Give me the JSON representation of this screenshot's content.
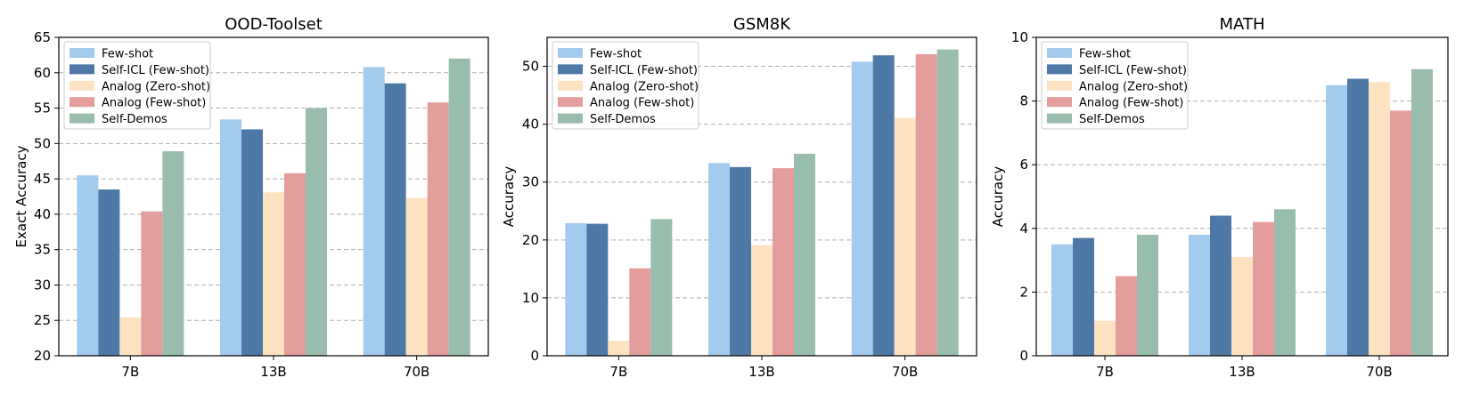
{
  "chart_data": [
    {
      "type": "bar",
      "title": "OOD-Toolset",
      "xlabel": "",
      "ylabel": "Exact Accuracy",
      "categories": [
        "7B",
        "13B",
        "70B"
      ],
      "ylim": [
        20,
        65
      ],
      "yticks": [
        20,
        25,
        30,
        35,
        40,
        45,
        50,
        55,
        60,
        65
      ],
      "grid": "horizontal dashed",
      "legend_position": "top-left",
      "series": [
        {
          "name": "Few-shot",
          "color": "#a3cbee",
          "values": [
            45.5,
            53.4,
            60.8
          ]
        },
        {
          "name": "Self-ICL (Few-shot)",
          "color": "#4e79a7",
          "values": [
            43.5,
            52.0,
            58.5
          ]
        },
        {
          "name": "Analog (Zero-shot)",
          "color": "#fde3c2",
          "values": [
            25.4,
            43.1,
            42.3
          ]
        },
        {
          "name": "Analog (Few-shot)",
          "color": "#e39e9b",
          "values": [
            40.4,
            45.8,
            55.8
          ]
        },
        {
          "name": "Self-Demos",
          "color": "#99bdac",
          "values": [
            48.9,
            55.0,
            62.0
          ]
        }
      ]
    },
    {
      "type": "bar",
      "title": "GSM8K",
      "xlabel": "",
      "ylabel": "Accuracy",
      "categories": [
        "7B",
        "13B",
        "70B"
      ],
      "ylim": [
        0,
        55
      ],
      "yticks": [
        0,
        10,
        20,
        30,
        40,
        50
      ],
      "grid": "horizontal dashed",
      "legend_position": "top-left",
      "series": [
        {
          "name": "Few-shot",
          "color": "#a3cbee",
          "values": [
            22.9,
            33.3,
            50.8
          ]
        },
        {
          "name": "Self-ICL (Few-shot)",
          "color": "#4e79a7",
          "values": [
            22.8,
            32.6,
            51.9
          ]
        },
        {
          "name": "Analog (Zero-shot)",
          "color": "#fde3c2",
          "values": [
            2.6,
            19.1,
            41.1
          ]
        },
        {
          "name": "Analog (Few-shot)",
          "color": "#e39e9b",
          "values": [
            15.1,
            32.4,
            52.1
          ]
        },
        {
          "name": "Self-Demos",
          "color": "#99bdac",
          "values": [
            23.6,
            34.9,
            52.9
          ]
        }
      ]
    },
    {
      "type": "bar",
      "title": "MATH",
      "xlabel": "",
      "ylabel": "Accuracy",
      "categories": [
        "7B",
        "13B",
        "70B"
      ],
      "ylim": [
        0,
        10
      ],
      "yticks": [
        0,
        2,
        4,
        6,
        8,
        10
      ],
      "grid": "horizontal dashed",
      "legend_position": "top-left",
      "series": [
        {
          "name": "Few-shot",
          "color": "#a3cbee",
          "values": [
            3.5,
            3.8,
            8.5
          ]
        },
        {
          "name": "Self-ICL (Few-shot)",
          "color": "#4e79a7",
          "values": [
            3.7,
            4.4,
            8.7
          ]
        },
        {
          "name": "Analog (Zero-shot)",
          "color": "#fde3c2",
          "values": [
            1.1,
            3.1,
            8.6
          ]
        },
        {
          "name": "Analog (Few-shot)",
          "color": "#e39e9b",
          "values": [
            2.5,
            4.2,
            7.7
          ]
        },
        {
          "name": "Self-Demos",
          "color": "#99bdac",
          "values": [
            3.8,
            4.6,
            9.0
          ]
        }
      ]
    }
  ]
}
